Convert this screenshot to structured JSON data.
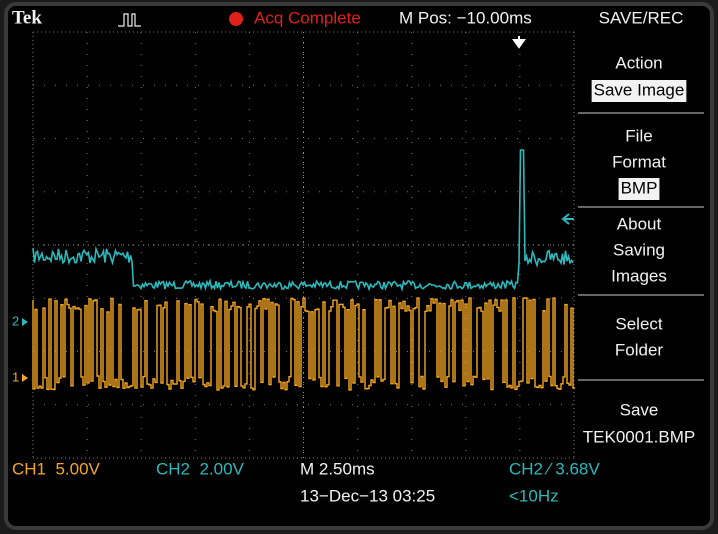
{
  "header": {
    "brand": "Tek",
    "status": "Acq Complete",
    "position": "M Pos: −10.00ms",
    "menu_title": "SAVE/REC"
  },
  "menu": [
    {
      "lines": [
        "Action"
      ],
      "selected": "Save Image"
    },
    {
      "lines": [
        "File",
        "Format"
      ],
      "selected": "BMP"
    },
    {
      "lines": [
        "About",
        "Saving",
        "Images"
      ]
    },
    {
      "lines": [
        "Select",
        "Folder"
      ]
    },
    {
      "lines": [
        "Save",
        "TEK0001.BMP"
      ]
    }
  ],
  "markers": {
    "ch2": "2",
    "ch1": "1"
  },
  "footer": {
    "ch1": "CH1  5.00V",
    "ch2": "CH2  2.00V",
    "timebase": "M 2.50ms",
    "trigger": "CH2 ∕ 3.68V",
    "date": "13−Dec−13 03:25",
    "frequency": "<10Hz"
  }
}
